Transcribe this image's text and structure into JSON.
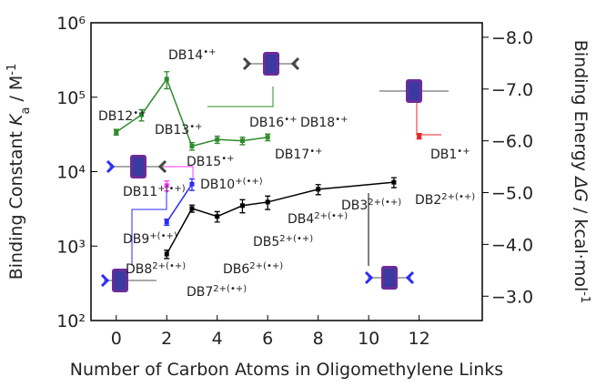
{
  "chart_data": {
    "type": "line",
    "x_label": "Number of Carbon Atoms in Oligomethylene Links",
    "y_label": {
      "text": "Binding Constant ",
      "italic": "K",
      "sub": "a",
      "unit": " / M",
      "sup": "-1"
    },
    "y2_label": {
      "text": "Binding Energy ",
      "italic": "ΔG",
      "unit": " / kcal·mol",
      "sup": "-1"
    },
    "xlim": [
      -1,
      14.5
    ],
    "xticks": [
      0,
      2,
      4,
      6,
      8,
      10,
      12
    ],
    "ylim": [
      100,
      1000000
    ],
    "log_scale": true,
    "yticks": [
      {
        "value": 100,
        "label": "10²"
      },
      {
        "value": 1000,
        "label": "10³"
      },
      {
        "value": 10000,
        "label": "10⁴"
      },
      {
        "value": 100000,
        "label": "10⁵"
      },
      {
        "value": 1000000,
        "label": "10⁶"
      }
    ],
    "y2lim": [
      -8.28,
      -2.53
    ],
    "y2ticks": [
      {
        "value": -8,
        "label": "−8.0"
      },
      {
        "value": -7,
        "label": "−7.0"
      },
      {
        "value": -6,
        "label": "−6.0"
      },
      {
        "value": -5,
        "label": "−5.0"
      },
      {
        "value": -4,
        "label": "−4.0"
      },
      {
        "value": -3,
        "label": "−3.0"
      }
    ],
    "series": [
      {
        "color": "#2e8b2e",
        "x": [
          0,
          1,
          2,
          3,
          4,
          5,
          6
        ],
        "values": [
          34000,
          58000,
          175000,
          22000,
          27000,
          26000,
          29000
        ],
        "errors": [
          3000,
          10000,
          45000,
          2500,
          3000,
          3000,
          3000
        ]
      },
      {
        "color": "#000000",
        "x": [
          2,
          3,
          4,
          5,
          6,
          8,
          11
        ],
        "values": [
          780,
          3200,
          2500,
          3500,
          3900,
          5800,
          7200
        ],
        "errors": [
          100,
          350,
          400,
          700,
          800,
          900,
          1100
        ]
      },
      {
        "color": "#2a2aff",
        "x": [
          2,
          3
        ],
        "values": [
          2100,
          6800
        ],
        "errors": [
          200,
          1200
        ]
      },
      {
        "color": "#ff33ff",
        "x": [
          2
        ],
        "values": [
          6500
        ],
        "errors": [
          1000
        ]
      },
      {
        "color": "#e8262a",
        "x": [
          12
        ],
        "values": [
          30000
        ],
        "errors": [
          2500
        ]
      }
    ],
    "annotations": [
      {
        "text": "DB12",
        "sup": "•+"
      },
      {
        "text": "DB13",
        "sup": "•+"
      },
      {
        "text": "DB14",
        "sup": "•+"
      },
      {
        "text": "DB15",
        "sup": "•+"
      },
      {
        "text": "DB16",
        "sup": "•+"
      },
      {
        "text": "DB17",
        "sup": "•+"
      },
      {
        "text": "DB18",
        "sup": "•+"
      },
      {
        "text": "DB1",
        "sup": "•+"
      },
      {
        "text": "DB11",
        "sup": "+(•+)"
      },
      {
        "text": "DB10",
        "sup": "+(•+)"
      },
      {
        "text": "DB9",
        "sup": "+(•+)"
      },
      {
        "text": "DB8",
        "sup": "2+(•+)"
      },
      {
        "text": "DB7",
        "sup": "2+(•+)"
      },
      {
        "text": "DB6",
        "sup": "2+(•+)"
      },
      {
        "text": "DB5",
        "sup": "2+(•+)"
      },
      {
        "text": "DB4",
        "sup": "2+(•+)"
      },
      {
        "text": "DB3",
        "sup": "2+(•+)"
      },
      {
        "text": "DB2",
        "sup": "2+(•+)"
      }
    ]
  }
}
